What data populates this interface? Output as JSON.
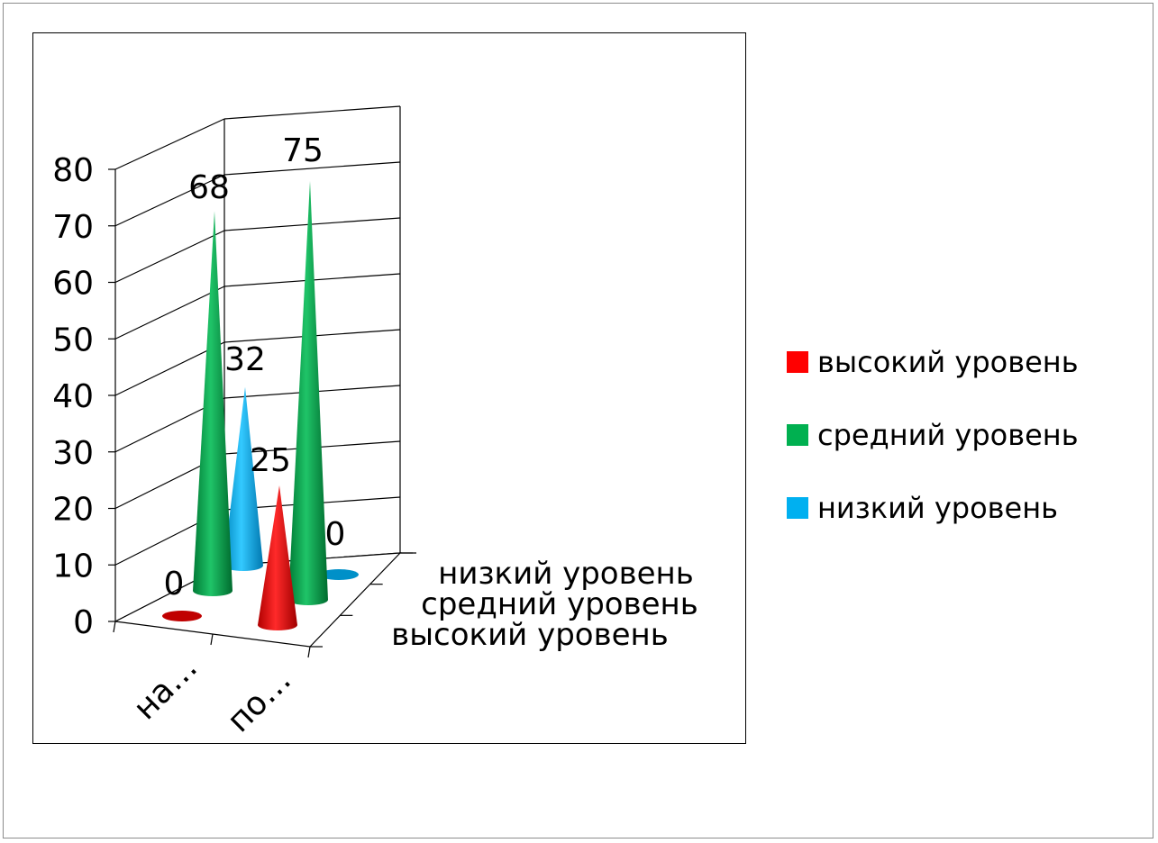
{
  "chart_data": {
    "type": "bar",
    "style": "3d-cone",
    "categories": [
      "на…",
      "по…"
    ],
    "depth_labels": [
      "низкий уровень",
      "средний уровень",
      "высокий уровень"
    ],
    "series": [
      {
        "name": "высокий уровень",
        "color": "#ff0000",
        "values": [
          0,
          25
        ]
      },
      {
        "name": "средний уровень",
        "color": "#00b050",
        "values": [
          68,
          75
        ]
      },
      {
        "name": "низкий уровень",
        "color": "#00b0f0",
        "values": [
          32,
          0
        ]
      }
    ],
    "y_ticks": [
      "0",
      "10",
      "20",
      "30",
      "40",
      "50",
      "60",
      "70",
      "80"
    ],
    "ylim": [
      0,
      80
    ],
    "data_labels": [
      "0",
      "68",
      "32",
      "25",
      "75",
      "0"
    ],
    "grid": true,
    "legend_position": "right"
  },
  "legend": [
    {
      "label": "высокий уровень",
      "color": "#ff0000"
    },
    {
      "label": "средний уровень",
      "color": "#00b050"
    },
    {
      "label": "низкий уровень",
      "color": "#00b0f0"
    }
  ]
}
